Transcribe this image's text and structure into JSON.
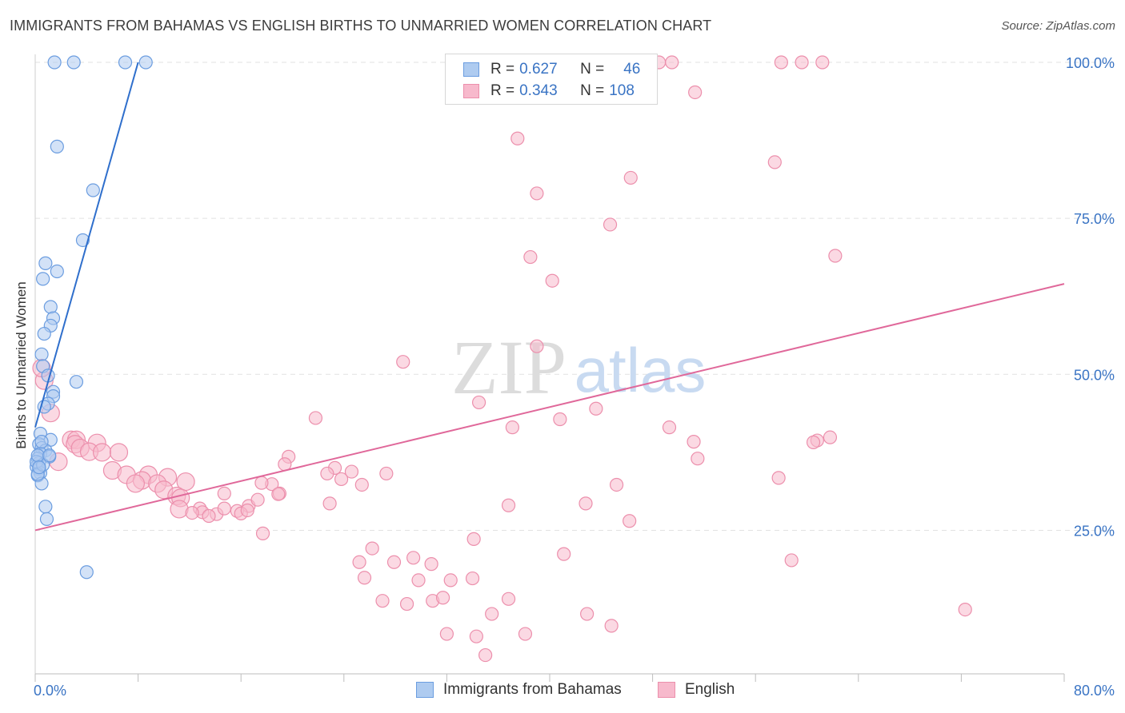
{
  "title": "IMMIGRANTS FROM BAHAMAS VS ENGLISH BIRTHS TO UNMARRIED WOMEN CORRELATION CHART",
  "source": "Source: ZipAtlas.com",
  "watermark": {
    "zip": "ZIP",
    "atlas": "atlas"
  },
  "legend": {
    "r_label": "R =",
    "n_label": "N =",
    "rows": [
      {
        "r": "0.627",
        "n": "46"
      },
      {
        "r": "0.343",
        "n": "108"
      }
    ]
  },
  "chart_data": {
    "type": "scatter",
    "title": "IMMIGRANTS FROM BAHAMAS VS ENGLISH BIRTHS TO UNMARRIED WOMEN CORRELATION CHART",
    "xlabel": "",
    "ylabel": "Births to Unmarried Women",
    "xlim": [
      0,
      80
    ],
    "ylim": [
      2,
      100
    ],
    "x_tick_labels": [
      "0.0%",
      "80.0%"
    ],
    "y_tick_labels": [
      "25.0%",
      "50.0%",
      "75.0%",
      "100.0%"
    ],
    "y_ticks": [
      25,
      50,
      75,
      100
    ],
    "colors": {
      "bahamas_fill": "#aecbf0",
      "bahamas_stroke": "#6b9de0",
      "bahamas_line": "#2f6fcc",
      "english_fill": "#f7b9cc",
      "english_stroke": "#ec8fac",
      "english_line": "#e0689a",
      "axis_text": "#3a74c4"
    },
    "series": [
      {
        "name": "Immigrants from Bahamas",
        "r": 0.627,
        "n": 46,
        "trend": {
          "x": [
            0,
            8
          ],
          "y": [
            41.5,
            100
          ]
        },
        "points": [
          [
            1.5,
            100
          ],
          [
            3,
            100
          ],
          [
            7,
            100
          ],
          [
            8.6,
            100
          ],
          [
            1.7,
            86.5
          ],
          [
            4.5,
            79.5
          ],
          [
            3.7,
            71.5
          ],
          [
            0.8,
            67.8
          ],
          [
            1.7,
            66.5
          ],
          [
            0.6,
            65.3
          ],
          [
            1.2,
            60.8
          ],
          [
            1.4,
            59
          ],
          [
            1.2,
            57.8
          ],
          [
            0.7,
            56.5
          ],
          [
            0.5,
            53.2
          ],
          [
            0.6,
            51.3
          ],
          [
            1,
            49.8
          ],
          [
            3.2,
            48.8
          ],
          [
            1.4,
            47.2
          ],
          [
            1.4,
            46.5
          ],
          [
            1,
            45.3
          ],
          [
            0.7,
            44.8
          ],
          [
            0.4,
            40.5
          ],
          [
            1.2,
            39.5
          ],
          [
            0.3,
            38.8
          ],
          [
            0.5,
            38.2
          ],
          [
            0.8,
            37.8
          ],
          [
            0.4,
            37.3
          ],
          [
            1.1,
            36.8
          ],
          [
            0.2,
            36.5
          ],
          [
            0.3,
            35.8
          ],
          [
            0.1,
            35.2
          ],
          [
            0.3,
            34.8
          ],
          [
            0.4,
            34.2
          ],
          [
            0.2,
            33.8
          ],
          [
            0.5,
            32.5
          ],
          [
            0.8,
            28.8
          ],
          [
            0.9,
            26.8
          ],
          [
            4,
            18.3
          ],
          [
            0.2,
            34
          ],
          [
            0.1,
            36
          ],
          [
            0.6,
            35.5
          ],
          [
            0.2,
            37
          ],
          [
            1.1,
            37
          ],
          [
            0.3,
            35.1
          ],
          [
            0.5,
            39.2
          ]
        ]
      },
      {
        "name": "English",
        "r": 0.343,
        "n": 108,
        "trend": {
          "x": [
            0,
            80
          ],
          "y": [
            25,
            64.5
          ]
        },
        "points": [
          [
            44,
            100
          ],
          [
            48.5,
            100
          ],
          [
            49.5,
            100
          ],
          [
            58,
            100
          ],
          [
            59.6,
            100
          ],
          [
            61.2,
            100
          ],
          [
            51.3,
            95.2
          ],
          [
            37.5,
            87.8
          ],
          [
            57.5,
            84
          ],
          [
            46.3,
            81.5
          ],
          [
            39,
            79
          ],
          [
            44.7,
            74
          ],
          [
            62.2,
            69
          ],
          [
            38.5,
            68.8
          ],
          [
            40.2,
            65
          ],
          [
            39,
            54.5
          ],
          [
            28.6,
            52
          ],
          [
            0.7,
            49
          ],
          [
            0.5,
            51
          ],
          [
            1.2,
            43.8
          ],
          [
            43.6,
            44.5
          ],
          [
            34.5,
            45.5
          ],
          [
            40.8,
            42.8
          ],
          [
            21.8,
            43
          ],
          [
            37.1,
            41.5
          ],
          [
            49.3,
            41.5
          ],
          [
            51.2,
            39.2
          ],
          [
            60.8,
            39.4
          ],
          [
            61.8,
            39.9
          ],
          [
            2.8,
            39.5
          ],
          [
            3.2,
            39.5
          ],
          [
            4.8,
            39
          ],
          [
            3.1,
            38.8
          ],
          [
            3.5,
            38.2
          ],
          [
            4.2,
            37.6
          ],
          [
            5.2,
            37.5
          ],
          [
            1.8,
            36
          ],
          [
            6.5,
            37.5
          ],
          [
            19.7,
            36.8
          ],
          [
            19.4,
            35.6
          ],
          [
            23.3,
            35
          ],
          [
            24.6,
            34.4
          ],
          [
            22.7,
            34.1
          ],
          [
            27.3,
            34.1
          ],
          [
            6,
            34.6
          ],
          [
            7.1,
            33.9
          ],
          [
            8.8,
            33.9
          ],
          [
            10.3,
            33.5
          ],
          [
            8.3,
            33
          ],
          [
            9.5,
            32.5
          ],
          [
            7.8,
            32.5
          ],
          [
            11.7,
            32.8
          ],
          [
            23.8,
            33.2
          ],
          [
            25.4,
            32.3
          ],
          [
            18.4,
            32.4
          ],
          [
            17.6,
            32.6
          ],
          [
            10,
            31.5
          ],
          [
            11,
            30.5
          ],
          [
            11.3,
            30.2
          ],
          [
            11.2,
            28.4
          ],
          [
            12.8,
            28.5
          ],
          [
            13,
            27.9
          ],
          [
            12.2,
            27.8
          ],
          [
            14.1,
            27.6
          ],
          [
            13.5,
            27.3
          ],
          [
            14.7,
            28.5
          ],
          [
            14.7,
            30.9
          ],
          [
            15.7,
            28.1
          ],
          [
            16.6,
            28.9
          ],
          [
            16,
            27.7
          ],
          [
            16.5,
            28.2
          ],
          [
            17.3,
            29.9
          ],
          [
            19,
            30.9
          ],
          [
            18.9,
            30.8
          ],
          [
            22.9,
            29.3
          ],
          [
            36.8,
            29
          ],
          [
            42.8,
            29.3
          ],
          [
            46.2,
            26.5
          ],
          [
            45.2,
            32.3
          ],
          [
            57.8,
            33.4
          ],
          [
            17.7,
            24.5
          ],
          [
            34.1,
            23.6
          ],
          [
            26.2,
            22.1
          ],
          [
            41.1,
            21.2
          ],
          [
            27.9,
            19.9
          ],
          [
            29.4,
            20.6
          ],
          [
            30.8,
            19.6
          ],
          [
            25.2,
            19.9
          ],
          [
            58.8,
            20.2
          ],
          [
            25.6,
            17.4
          ],
          [
            29.8,
            17
          ],
          [
            32.3,
            17
          ],
          [
            34,
            17.3
          ],
          [
            27,
            13.7
          ],
          [
            28.9,
            13.2
          ],
          [
            30.9,
            13.7
          ],
          [
            31.7,
            14.2
          ],
          [
            36.8,
            14
          ],
          [
            35.5,
            11.6
          ],
          [
            42.9,
            11.6
          ],
          [
            44.8,
            9.7
          ],
          [
            32,
            8.4
          ],
          [
            34.3,
            8
          ],
          [
            38.1,
            8.4
          ],
          [
            35,
            5
          ],
          [
            72.3,
            12.3
          ],
          [
            60.5,
            39.1
          ],
          [
            51.5,
            36.5
          ]
        ]
      }
    ]
  }
}
